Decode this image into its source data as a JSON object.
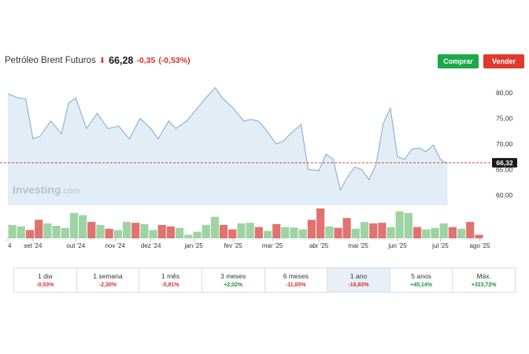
{
  "header": {
    "title": "Petróleo Brent Futuros",
    "arrow": "down-arrow-icon",
    "price": "66,28",
    "change": "-0,35",
    "change_pct": "(-0,53%)",
    "buy_label": "Comprar",
    "sell_label": "Vender"
  },
  "colors": {
    "buy": "#1ea84a",
    "sell": "#e03a2f",
    "negative": "#d9302c",
    "positive": "#1f8f3a",
    "area_fill": "#e3edf6",
    "area_line": "#8fb4d6",
    "vol_up": "#9fd3a4",
    "vol_down": "#e07270",
    "price_line": "#cc3333"
  },
  "watermark": "Investing",
  "watermark_suffix": ".com",
  "chart_data": {
    "type": "area",
    "y_ticks": [
      "80,00",
      "75,00",
      "70,00",
      "65,00",
      "60,00"
    ],
    "ylim": [
      58,
      82
    ],
    "current_price_label": "66,32",
    "current_price": 66.32,
    "x_tick_labels": [
      "4",
      "set '24",
      "out '24",
      "nov '24",
      "dez '24",
      "jan '25",
      "fev '25",
      "mar '25",
      "abr '25",
      "mai '25",
      "jun '25",
      "jul '25",
      "ago '25"
    ],
    "x_tick_positions": [
      0,
      7,
      19,
      30,
      40,
      52,
      63,
      74,
      87,
      98,
      109,
      121,
      132
    ],
    "n_points": 134,
    "price_anchors": [
      [
        0,
        79.8
      ],
      [
        3,
        79.0
      ],
      [
        5,
        78.8
      ],
      [
        7,
        71.0
      ],
      [
        9,
        71.5
      ],
      [
        12,
        74.5
      ],
      [
        15,
        72.0
      ],
      [
        17,
        78.0
      ],
      [
        19,
        79.0
      ],
      [
        22,
        73.0
      ],
      [
        25,
        76.0
      ],
      [
        28,
        73.0
      ],
      [
        31,
        73.5
      ],
      [
        34,
        71.0
      ],
      [
        37,
        75.0
      ],
      [
        40,
        73.0
      ],
      [
        42,
        71.0
      ],
      [
        45,
        74.5
      ],
      [
        47,
        73.0
      ],
      [
        50,
        74.5
      ],
      [
        53,
        77.0
      ],
      [
        56,
        79.5
      ],
      [
        58,
        81.0
      ],
      [
        60,
        79.0
      ],
      [
        63,
        77.0
      ],
      [
        66,
        74.5
      ],
      [
        68,
        74.8
      ],
      [
        70,
        74.5
      ],
      [
        72,
        73.0
      ],
      [
        75,
        70.0
      ],
      [
        77,
        70.5
      ],
      [
        79,
        72.0
      ],
      [
        82,
        73.8
      ],
      [
        84,
        65.0
      ],
      [
        87,
        64.8
      ],
      [
        89,
        68.0
      ],
      [
        91,
        67.0
      ],
      [
        93,
        61.0
      ],
      [
        95,
        63.5
      ],
      [
        97,
        65.5
      ],
      [
        99,
        65.0
      ],
      [
        101,
        63.0
      ],
      [
        103,
        66.0
      ],
      [
        105,
        74.0
      ],
      [
        107,
        77.0
      ],
      [
        109,
        67.5
      ],
      [
        111,
        67.0
      ],
      [
        113,
        69.0
      ],
      [
        115,
        69.2
      ],
      [
        117,
        68.5
      ],
      [
        119,
        69.8
      ],
      [
        121,
        67.0
      ],
      [
        122,
        66.5
      ],
      [
        123,
        66.3
      ]
    ],
    "volume": [
      [
        0.45,
        1
      ],
      [
        0.4,
        1
      ],
      [
        0.28,
        0
      ],
      [
        0.62,
        0
      ],
      [
        0.5,
        1
      ],
      [
        0.42,
        1
      ],
      [
        0.35,
        1
      ],
      [
        0.85,
        1
      ],
      [
        0.78,
        1
      ],
      [
        0.55,
        0
      ],
      [
        0.45,
        1
      ],
      [
        0.32,
        0
      ],
      [
        0.28,
        1
      ],
      [
        0.55,
        1
      ],
      [
        0.52,
        0
      ],
      [
        0.48,
        1
      ],
      [
        0.28,
        1
      ],
      [
        0.45,
        0
      ],
      [
        0.4,
        0
      ],
      [
        0.35,
        1
      ],
      [
        0.12,
        1
      ],
      [
        0.22,
        1
      ],
      [
        0.45,
        1
      ],
      [
        0.72,
        1
      ],
      [
        0.45,
        0
      ],
      [
        0.3,
        0
      ],
      [
        0.5,
        1
      ],
      [
        0.52,
        1
      ],
      [
        0.38,
        0
      ],
      [
        0.25,
        1
      ],
      [
        0.48,
        0
      ],
      [
        0.38,
        1
      ],
      [
        0.36,
        1
      ],
      [
        0.3,
        1
      ],
      [
        0.62,
        0
      ],
      [
        1.0,
        0
      ],
      [
        0.4,
        1
      ],
      [
        0.35,
        0
      ],
      [
        0.68,
        0
      ],
      [
        0.32,
        1
      ],
      [
        0.55,
        1
      ],
      [
        0.5,
        0
      ],
      [
        0.52,
        0
      ],
      [
        0.38,
        1
      ],
      [
        0.9,
        1
      ],
      [
        0.85,
        1
      ],
      [
        0.38,
        0
      ],
      [
        0.3,
        1
      ],
      [
        0.35,
        1
      ],
      [
        0.5,
        1
      ],
      [
        0.38,
        0
      ],
      [
        0.32,
        1
      ],
      [
        0.55,
        0
      ],
      [
        0.12,
        0
      ]
    ]
  },
  "timeframes": [
    {
      "label": "1 dia",
      "change": "-0,53%",
      "positive": false,
      "active": false
    },
    {
      "label": "1 semana",
      "change": "-2,30%",
      "positive": false,
      "active": false
    },
    {
      "label": "1 mês",
      "change": "-5,81%",
      "positive": false,
      "active": false
    },
    {
      "label": "3 meses",
      "change": "+2,02%",
      "positive": true,
      "active": false
    },
    {
      "label": "6 meses",
      "change": "-11,65%",
      "positive": false,
      "active": false
    },
    {
      "label": "1 ano",
      "change": "-16,83%",
      "positive": false,
      "active": true
    },
    {
      "label": "5 anos",
      "change": "+45,14%",
      "positive": true,
      "active": false
    },
    {
      "label": "Máx.",
      "change": "+323,72%",
      "positive": true,
      "active": false
    }
  ]
}
